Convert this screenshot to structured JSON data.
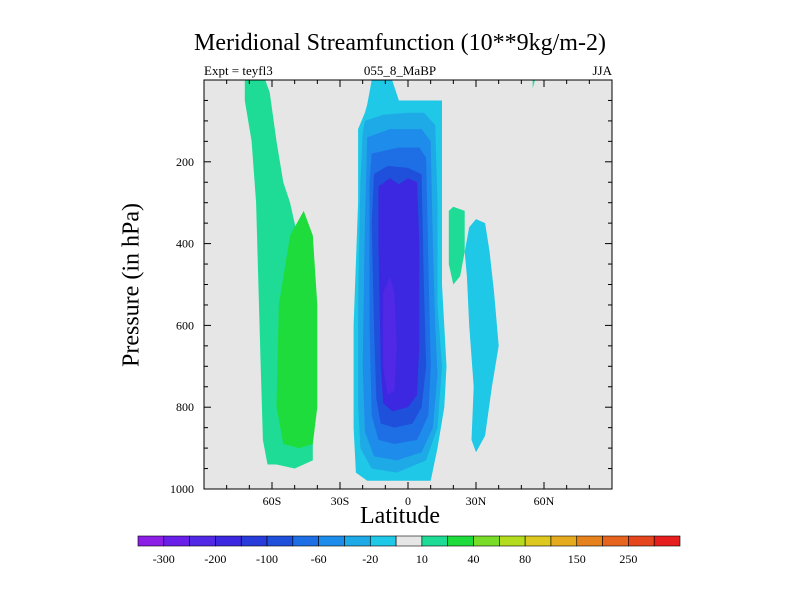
{
  "chart_data": {
    "type": "heatmap",
    "title": "Meridional Streamfunction (10**9kg/m-2)",
    "subtitle_left": "Expt = teyfl3",
    "subtitle_center": "055_8_MaBP",
    "subtitle_right": "JJA",
    "xlabel": "Latitude",
    "ylabel": "Pressure (in hPa)",
    "x_ticks": [
      {
        "value": -60,
        "label": "60S"
      },
      {
        "value": -30,
        "label": "30S"
      },
      {
        "value": 0,
        "label": "0"
      },
      {
        "value": 30,
        "label": "30N"
      },
      {
        "value": 60,
        "label": "60N"
      }
    ],
    "y_ticks": [
      {
        "value": 200,
        "label": "200"
      },
      {
        "value": 400,
        "label": "400"
      },
      {
        "value": 600,
        "label": "600"
      },
      {
        "value": 800,
        "label": "800"
      },
      {
        "value": 1000,
        "label": "1000"
      }
    ],
    "xlim": [
      -90,
      90
    ],
    "ylim": [
      1000,
      0
    ],
    "background_color": "#e6e6e6",
    "colorbar": {
      "colors": [
        "#8c1ee6",
        "#6a1eea",
        "#5028e6",
        "#3c28e0",
        "#283cdc",
        "#1e50dc",
        "#1e6ee6",
        "#1e8cea",
        "#1eaae6",
        "#1ec8e6",
        "#e6e6e6",
        "#1edc96",
        "#1edc3c",
        "#78dc28",
        "#b4dc1e",
        "#dcc81e",
        "#e6aa1e",
        "#e6821e",
        "#e6641e",
        "#e6461e",
        "#e61e1e"
      ],
      "labels": [
        {
          "after_color": 0,
          "text": "-300"
        },
        {
          "after_color": 2,
          "text": "-200"
        },
        {
          "after_color": 4,
          "text": "-100"
        },
        {
          "after_color": 6,
          "text": "-60"
        },
        {
          "after_color": 8,
          "text": "-20"
        },
        {
          "after_color": 10,
          "text": "10"
        },
        {
          "after_color": 12,
          "text": "40"
        },
        {
          "after_color": 14,
          "text": "80"
        },
        {
          "after_color": 16,
          "text": "150"
        },
        {
          "after_color": 18,
          "text": "250"
        }
      ]
    },
    "cells": [
      {
        "name": "nh-upper-cell",
        "value": 10,
        "level": 11,
        "pts": [
          [
            55,
            1
          ],
          [
            56,
            1
          ],
          [
            55,
            20
          ],
          [
            55,
            20
          ]
        ]
      },
      {
        "name": "nh-upper-jet",
        "value": 10,
        "level": 11,
        "pts": [
          [
            18,
            320
          ],
          [
            20,
            310
          ],
          [
            25,
            320
          ],
          [
            25,
            420
          ],
          [
            23,
            480
          ],
          [
            20,
            500
          ],
          [
            18,
            450
          ]
        ]
      },
      {
        "name": "nh-lower-cell",
        "value": -20,
        "level": 9,
        "pts": [
          [
            27,
            360
          ],
          [
            30,
            340
          ],
          [
            34,
            350
          ],
          [
            36,
            420
          ],
          [
            38,
            520
          ],
          [
            40,
            650
          ],
          [
            37,
            750
          ],
          [
            34,
            870
          ],
          [
            30,
            910
          ],
          [
            28,
            880
          ],
          [
            29,
            750
          ],
          [
            27,
            600
          ],
          [
            26,
            480
          ],
          [
            25,
            420
          ]
        ]
      },
      {
        "name": "sh-ferrel-cell",
        "value": 10,
        "level": 11,
        "pts": [
          [
            -72,
            0
          ],
          [
            -63,
            0
          ],
          [
            -61,
            30
          ],
          [
            -58,
            150
          ],
          [
            -55,
            250
          ],
          [
            -52,
            300
          ],
          [
            -48,
            400
          ],
          [
            -45,
            520
          ],
          [
            -43,
            700
          ],
          [
            -42,
            850
          ],
          [
            -42,
            930
          ],
          [
            -50,
            950
          ],
          [
            -58,
            940
          ],
          [
            -62,
            940
          ],
          [
            -64,
            880
          ],
          [
            -65,
            700
          ],
          [
            -66,
            500
          ],
          [
            -67,
            300
          ],
          [
            -69,
            150
          ],
          [
            -72,
            50
          ]
        ]
      },
      {
        "name": "sh-ferrel-core",
        "value": 40,
        "level": 12,
        "pts": [
          [
            -52,
            380
          ],
          [
            -46,
            320
          ],
          [
            -42,
            380
          ],
          [
            -40,
            550
          ],
          [
            -40,
            800
          ],
          [
            -42,
            890
          ],
          [
            -48,
            900
          ],
          [
            -55,
            890
          ],
          [
            -58,
            800
          ],
          [
            -57,
            550
          ]
        ]
      },
      {
        "name": "hadley-level-9",
        "value": -20,
        "level": 9,
        "pts": [
          [
            -16,
            0
          ],
          [
            -7,
            0
          ],
          [
            -4,
            50
          ],
          [
            15,
            50
          ],
          [
            15,
            500
          ],
          [
            17,
            700
          ],
          [
            16,
            800
          ],
          [
            13,
            900
          ],
          [
            10,
            980
          ],
          [
            -12,
            980
          ],
          [
            -18,
            980
          ],
          [
            -23,
            960
          ],
          [
            -24,
            850
          ],
          [
            -24,
            600
          ],
          [
            -22,
            300
          ],
          [
            -22,
            120
          ],
          [
            -19,
            80
          ],
          [
            -18,
            60
          ],
          [
            -17,
            30
          ]
        ]
      },
      {
        "name": "hadley-level-8",
        "value": -40,
        "level": 8,
        "pts": [
          [
            -19,
            100
          ],
          [
            -11,
            85
          ],
          [
            0,
            80
          ],
          [
            7,
            80
          ],
          [
            12,
            110
          ],
          [
            13,
            300
          ],
          [
            13,
            550
          ],
          [
            15,
            700
          ],
          [
            13,
            850
          ],
          [
            8,
            930
          ],
          [
            -5,
            960
          ],
          [
            -16,
            950
          ],
          [
            -21,
            900
          ],
          [
            -22,
            800
          ],
          [
            -22,
            550
          ],
          [
            -21,
            250
          ],
          [
            -20,
            130
          ]
        ]
      },
      {
        "name": "hadley-level-7",
        "value": -60,
        "level": 7,
        "pts": [
          [
            -18,
            140
          ],
          [
            -8,
            120
          ],
          [
            6,
            120
          ],
          [
            10,
            150
          ],
          [
            11,
            400
          ],
          [
            12,
            600
          ],
          [
            13,
            720
          ],
          [
            11,
            850
          ],
          [
            6,
            910
          ],
          [
            -5,
            930
          ],
          [
            -15,
            920
          ],
          [
            -19,
            860
          ],
          [
            -20,
            700
          ],
          [
            -19,
            350
          ]
        ]
      },
      {
        "name": "hadley-level-6",
        "value": -80,
        "level": 6,
        "pts": [
          [
            -16,
            180
          ],
          [
            -4,
            165
          ],
          [
            5,
            165
          ],
          [
            8,
            190
          ],
          [
            9,
            450
          ],
          [
            10,
            700
          ],
          [
            9,
            820
          ],
          [
            4,
            880
          ],
          [
            -6,
            890
          ],
          [
            -13,
            880
          ],
          [
            -16,
            820
          ],
          [
            -17,
            600
          ],
          [
            -17,
            250
          ]
        ]
      },
      {
        "name": "hadley-level-5",
        "value": -100,
        "level": 5,
        "pts": [
          [
            -15,
            230
          ],
          [
            -9,
            210
          ],
          [
            0,
            215
          ],
          [
            6,
            230
          ],
          [
            7,
            500
          ],
          [
            8,
            700
          ],
          [
            6,
            800
          ],
          [
            2,
            840
          ],
          [
            -6,
            850
          ],
          [
            -12,
            840
          ],
          [
            -14,
            780
          ],
          [
            -15,
            600
          ],
          [
            -16,
            350
          ]
        ]
      },
      {
        "name": "hadley-level-3",
        "value": -150,
        "level": 3,
        "pts": [
          [
            -13,
            260
          ],
          [
            -8,
            240
          ],
          [
            -4,
            255
          ],
          [
            0,
            240
          ],
          [
            4,
            250
          ],
          [
            5,
            400
          ],
          [
            5,
            650
          ],
          [
            4,
            770
          ],
          [
            0,
            800
          ],
          [
            -7,
            810
          ],
          [
            -11,
            790
          ],
          [
            -12,
            700
          ],
          [
            -13,
            400
          ]
        ]
      },
      {
        "name": "hadley-core",
        "value": -200,
        "level": 2,
        "pts": [
          [
            -11,
            520
          ],
          [
            -8,
            480
          ],
          [
            -6,
            520
          ],
          [
            -5,
            650
          ],
          [
            -6,
            760
          ],
          [
            -9,
            770
          ],
          [
            -11,
            700
          ]
        ]
      }
    ]
  }
}
